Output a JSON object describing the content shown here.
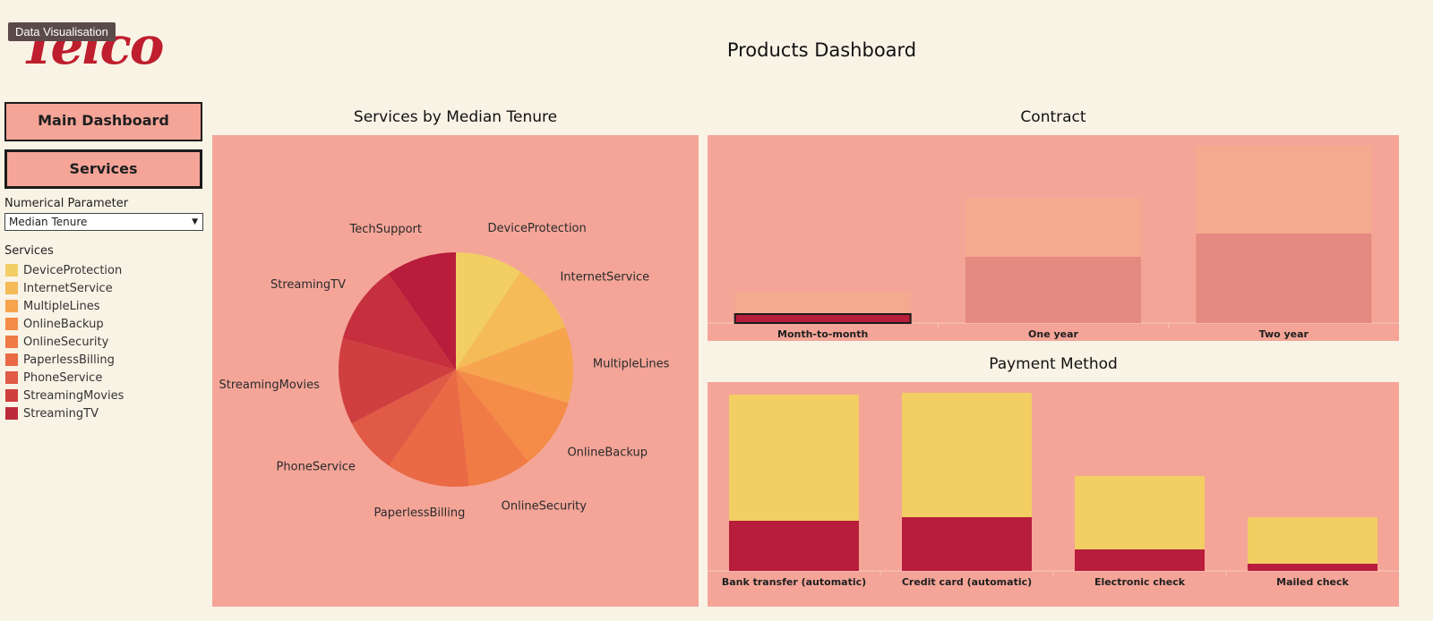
{
  "app": {
    "logo_text": "Telco",
    "tooltip": "Data Visualisation",
    "title": "Products Dashboard"
  },
  "nav": {
    "main_label": "Main Dashboard",
    "services_label": "Services"
  },
  "parameter": {
    "label": "Numerical Parameter",
    "selected": "Median Tenure"
  },
  "legend": {
    "title": "Services",
    "items": [
      {
        "label": "DeviceProtection",
        "color": "#f2ce63"
      },
      {
        "label": "InternetService",
        "color": "#f5bb57"
      },
      {
        "label": "MultipleLines",
        "color": "#f6a44e"
      },
      {
        "label": "OnlineBackup",
        "color": "#f48c47"
      },
      {
        "label": "OnlineSecurity",
        "color": "#f07b45"
      },
      {
        "label": "PaperlessBilling",
        "color": "#e96a44"
      },
      {
        "label": "PhoneService",
        "color": "#e05a45"
      },
      {
        "label": "StreamingMovies",
        "color": "#cf3f40"
      },
      {
        "label": "StreamingTV",
        "color": "#bd2a3c"
      }
    ]
  },
  "chart_data": [
    {
      "type": "pie",
      "title": "Services by Median Tenure",
      "categories": [
        "DeviceProtection",
        "InternetService",
        "MultipleLines",
        "OnlineBackup",
        "OnlineSecurity",
        "PaperlessBilling",
        "PhoneService",
        "StreamingMovies",
        "StreamingTV",
        "TechSupport"
      ],
      "values": [
        9.3,
        9.8,
        10.5,
        9.8,
        8.8,
        11.5,
        7.7,
        11.9,
        10.9,
        9.8
      ],
      "colors": [
        "#f2ce63",
        "#f5bb57",
        "#f6a44e",
        "#f48c47",
        "#f07b45",
        "#e96a44",
        "#e05a45",
        "#cf3f40",
        "#c62f3e",
        "#b81d3c"
      ]
    },
    {
      "type": "bar",
      "title": "Contract",
      "categories": [
        "Month-to-month",
        "One year",
        "Two year"
      ],
      "series": [
        {
          "values": [
            5,
            37,
            50
          ],
          "color": "#e58a80"
        },
        {
          "values": [
            12,
            33,
            49
          ],
          "color": "#f4aa8e"
        }
      ],
      "highlight": {
        "category": "Month-to-month",
        "color": "#b81d3c"
      },
      "ylim": [
        0,
        100
      ]
    },
    {
      "type": "bar",
      "title": "Payment Method",
      "categories": [
        "Bank transfer (automatic)",
        "Credit card (automatic)",
        "Electronic check",
        "Mailed check"
      ],
      "series": [
        {
          "values": [
            56,
            60,
            24,
            8
          ],
          "color": "#b81d3c"
        },
        {
          "values": [
            141,
            139,
            82,
            52
          ],
          "color": "#f2ce63"
        }
      ],
      "ylim": [
        0,
        200
      ]
    }
  ]
}
